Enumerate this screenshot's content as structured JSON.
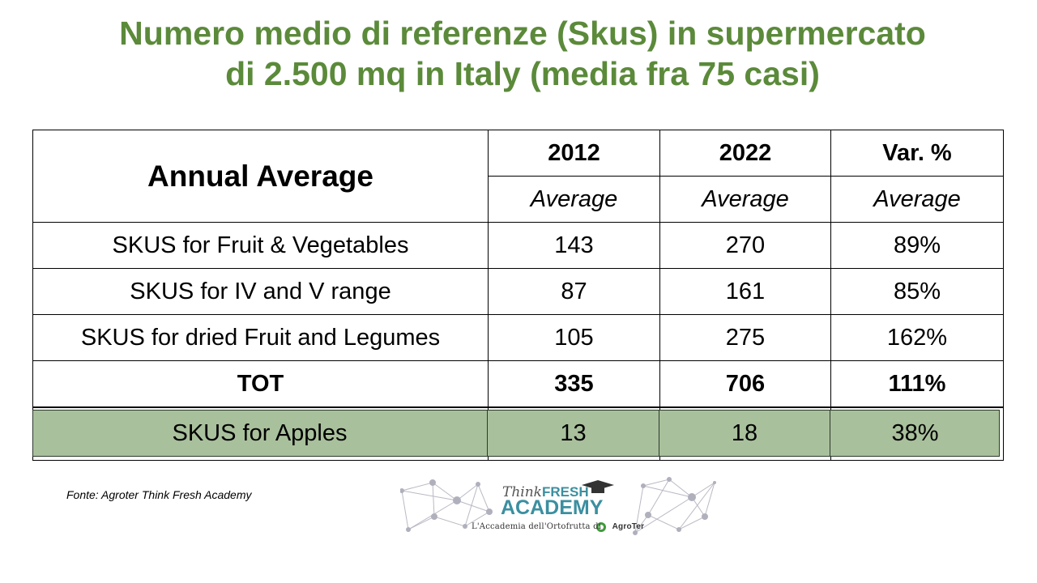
{
  "title": {
    "line1": "Numero medio di referenze (Skus) in supermercato",
    "line2": "di 2.500 mq in Italy (media fra 75 casi)"
  },
  "table": {
    "header_label": "Annual Average",
    "years": [
      "2012",
      "2022",
      "Var. %"
    ],
    "subheaders": [
      "Average",
      "Average",
      "Average"
    ],
    "rows": [
      {
        "label": "SKUS for Fruit & Vegetables",
        "v2012": "143",
        "v2022": "270",
        "var": "89%"
      },
      {
        "label": "SKUS for IV and V range",
        "v2012": "87",
        "v2022": "161",
        "var": "85%"
      },
      {
        "label": "SKUS for dried Fruit and Legumes",
        "v2012": "105",
        "v2022": "275",
        "var": "162%"
      }
    ],
    "total": {
      "label": "TOT",
      "v2012": "335",
      "v2022": "706",
      "var": "111%"
    },
    "highlight": {
      "label": "SKUS for Apples",
      "v2012": "13",
      "v2022": "18",
      "var": "38%"
    }
  },
  "source": "Fonte: Agroter Think Fresh Academy",
  "logo": {
    "think": "Think",
    "fresh": "FRESH",
    "academy": "ACADEMY",
    "tagline": "L'Accademia dell'Ortofrutta di",
    "brand": "AgroTer"
  },
  "colors": {
    "title": "#5b8a3a",
    "highlight_band": "#a9c09c",
    "logo_accent": "#3b8fa0"
  }
}
